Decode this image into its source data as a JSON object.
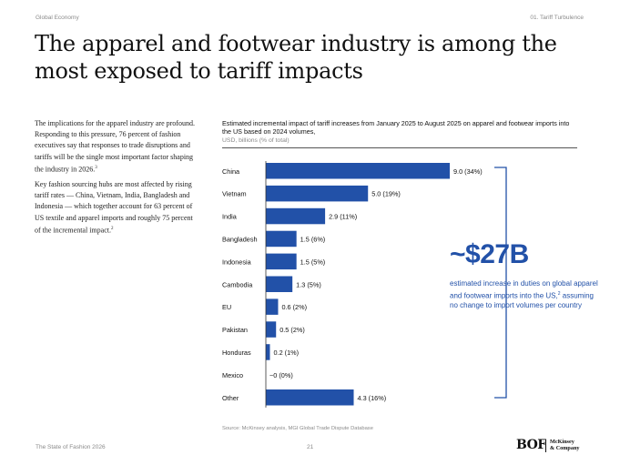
{
  "header": {
    "section": "Global Economy",
    "chapter": "01. Tariff Turbulence"
  },
  "title_lines": [
    "The apparel and footwear industry is among the",
    "most exposed to tariff impacts"
  ],
  "body": {
    "p1": "The implications for the apparel industry are profound. Responding to this pressure, 76 percent of fashion executives say that responses to trade disruptions and tariffs will be the single most important factor shaping the industry in 2026.",
    "p1_note": "3",
    "p2": "Key fashion sourcing hubs are most affected by rising tariff rates — China, Vietnam, India, Bangladesh and Indonesia — which together account for 63 percent of US textile and apparel imports and roughly 75 percent of the incremental impact.",
    "p2_note": "2"
  },
  "chart_data": {
    "type": "bar",
    "orientation": "horizontal",
    "title": "Estimated incremental impact of tariff increases from January 2025 to August 2025 on apparel and footwear imports into the US based on 2024 volumes,",
    "units": "USD, billions (% of total)",
    "categories": [
      "China",
      "Vietnam",
      "India",
      "Bangladesh",
      "Indonesia",
      "Cambodia",
      "EU",
      "Pakistan",
      "Honduras",
      "Mexico",
      "Other"
    ],
    "values": [
      9.0,
      5.0,
      2.9,
      1.5,
      1.5,
      1.3,
      0.6,
      0.5,
      0.2,
      0,
      4.3
    ],
    "labels": [
      "9.0 (34%)",
      "5.0 (19%)",
      "2.9 (11%)",
      "1.5 (6%)",
      "1.5 (5%)",
      "1.3 (5%)",
      "0.6 (2%)",
      "0.5 (2%)",
      "0.2 (1%)",
      "~0 (0%)",
      "4.3 (16%)"
    ],
    "xlim": [
      0,
      9.0
    ],
    "bar_color": "#2251a8",
    "grid": false
  },
  "callout": {
    "value": "~$27B",
    "text": "estimated increase in duties on global apparel and footwear imports into the US, assuming no change to import volumes per country",
    "note": "2",
    "color": "#2251a8"
  },
  "source": "Source: McKinsey analysis, MGI Global Trade Dispute Database",
  "footer": {
    "report": "The State of Fashion 2026",
    "page": "21"
  },
  "logos": {
    "bof": "BOF",
    "mckinsey_line1": "McKinsey",
    "mckinsey_line2": "& Company"
  }
}
